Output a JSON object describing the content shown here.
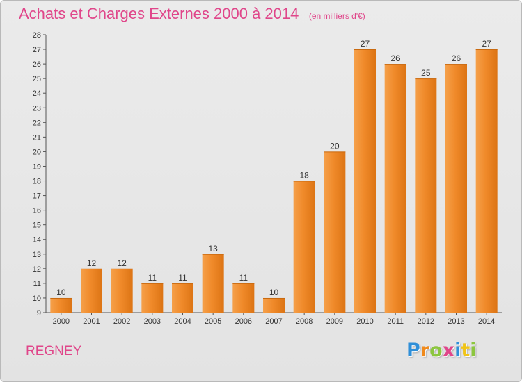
{
  "title": "Achats et Charges Externes 2000 à 2014",
  "unit": "(en milliers d'€)",
  "commune": "REGNEY",
  "logo_letters": [
    {
      "ch": "P",
      "color": "#2f8fd8"
    },
    {
      "ch": "r",
      "color": "#f08a1c"
    },
    {
      "ch": "o",
      "color": "#8cc63f"
    },
    {
      "ch": "x",
      "color": "#e0468a"
    },
    {
      "ch": "i",
      "color": "#2f8fd8"
    },
    {
      "ch": "t",
      "color": "#f0c419"
    },
    {
      "ch": "i",
      "color": "#8cc63f"
    }
  ],
  "chart_data": {
    "type": "bar",
    "categories": [
      "2000",
      "2001",
      "2002",
      "2003",
      "2004",
      "2005",
      "2006",
      "2007",
      "2008",
      "2009",
      "2010",
      "2011",
      "2012",
      "2013",
      "2014"
    ],
    "values": [
      10,
      12,
      12,
      11,
      11,
      13,
      11,
      10,
      18,
      20,
      27,
      26,
      25,
      26,
      27
    ],
    "ylim": [
      9,
      28
    ],
    "yticks": [
      9,
      10,
      11,
      12,
      13,
      14,
      15,
      16,
      17,
      18,
      19,
      20,
      21,
      22,
      23,
      24,
      25,
      26,
      27,
      28
    ],
    "grid": false,
    "bar_color": "#f08a2a",
    "bar_highlight": "#f7a85a",
    "bar_shadow": "#c96a10"
  }
}
